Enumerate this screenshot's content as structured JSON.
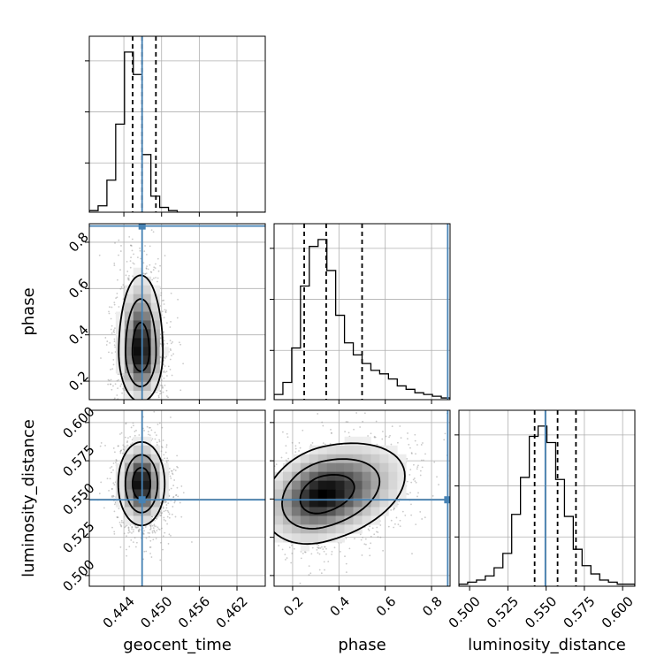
{
  "chart_data": {
    "type": "corner",
    "truth_color": "#4682b4",
    "parameters": [
      {
        "name": "geocent_time",
        "label": "geocent_time",
        "range": [
          0.4385,
          0.4665
        ],
        "ticks": [
          0.444,
          0.45,
          0.456,
          0.462
        ],
        "tick_labels": [
          "0.444",
          "0.450",
          "0.456",
          "0.462"
        ],
        "truth": 0.4469,
        "quantiles": [
          0.4454,
          0.4469,
          0.4491
        ],
        "hist": [
          1,
          4,
          20,
          55,
          100,
          86,
          36,
          10,
          3,
          1,
          0,
          0,
          0,
          0,
          0,
          0,
          0,
          0,
          0,
          0
        ]
      },
      {
        "name": "phase",
        "label": "phase",
        "range": [
          0.12,
          0.88
        ],
        "ticks": [
          0.2,
          0.4,
          0.6,
          0.8
        ],
        "tick_labels": [
          "0.2",
          "0.4",
          "0.6",
          "0.8"
        ],
        "truth": 0.87,
        "quantiles": [
          0.25,
          0.345,
          0.5
        ],
        "hist": [
          3,
          10,
          30,
          66,
          89,
          93,
          75,
          49,
          33,
          26,
          21,
          17,
          15,
          12,
          8,
          6,
          4,
          3,
          2,
          1
        ]
      },
      {
        "name": "luminosity_distance",
        "label": "luminosity_distance",
        "range": [
          0.493,
          0.608
        ],
        "ticks": [
          0.5,
          0.525,
          0.55,
          0.575,
          0.6
        ],
        "tick_labels": [
          "0.500",
          "0.525",
          "0.550",
          "0.575",
          "0.600"
        ],
        "truth": 0.5495,
        "quantiles": [
          0.5425,
          0.5575,
          0.5695
        ],
        "hist": [
          1,
          2,
          3,
          5,
          9,
          16,
          35,
          53,
          73,
          78,
          70,
          52,
          34,
          18,
          10,
          6,
          3,
          2,
          1,
          1
        ]
      }
    ],
    "pairs": [
      {
        "x": "geocent_time",
        "y": "phase",
        "center": [
          0.4468,
          0.33
        ],
        "spread": [
          0.0018,
          0.11
        ],
        "peak": [
          0.4467,
          0.325
        ]
      },
      {
        "x": "geocent_time",
        "y": "luminosity_distance",
        "center": [
          0.4469,
          0.557
        ],
        "spread": [
          0.0019,
          0.014
        ],
        "peak": [
          0.4468,
          0.56
        ]
      },
      {
        "x": "phase",
        "y": "luminosity_distance",
        "center": [
          0.36,
          0.552
        ],
        "spread": [
          0.13,
          0.016
        ],
        "peak": [
          0.33,
          0.553
        ]
      }
    ]
  }
}
